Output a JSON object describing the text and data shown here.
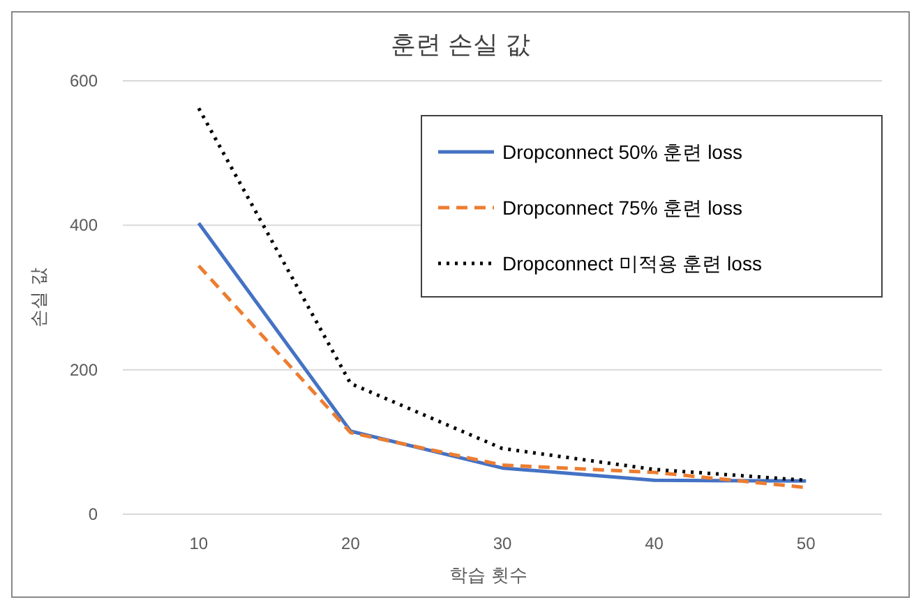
{
  "chart_data": {
    "type": "line",
    "title": "훈련 손실 값",
    "xlabel": "학습 횟수",
    "ylabel": "손실 값",
    "categories": [
      "10",
      "20",
      "30",
      "40",
      "50"
    ],
    "ylim": [
      0,
      600
    ],
    "yticks": [
      0,
      200,
      400,
      600
    ],
    "grid": "y",
    "legend": "top right",
    "series": [
      {
        "name": "Dropconnect 50% 훈련 loss",
        "color": "#4472c4",
        "line_style": "solid",
        "values": [
          403,
          115,
          64,
          47,
          46
        ]
      },
      {
        "name": "Dropconnect 75% 훈련 loss",
        "color": "#ed7d31",
        "line_style": "dashed",
        "values": [
          344,
          113,
          68,
          58,
          37
        ]
      },
      {
        "name": "Dropconnect 미적용 훈련 loss",
        "color": "#000000",
        "line_style": "dotted",
        "values": [
          562,
          181,
          91,
          62,
          47
        ]
      }
    ]
  }
}
